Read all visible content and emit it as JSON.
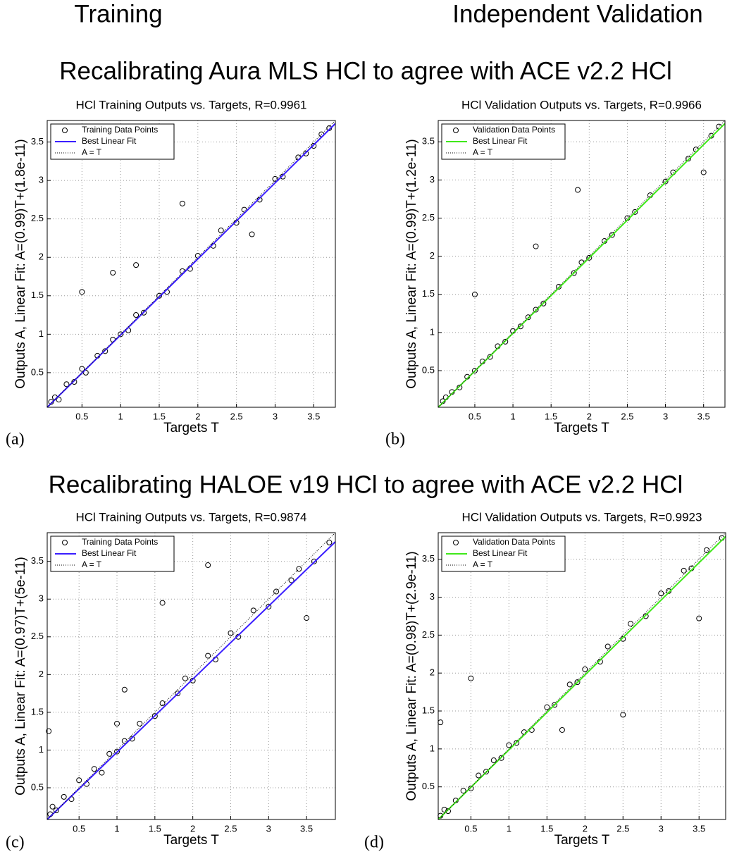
{
  "headers": {
    "left": "Training",
    "right": "Independent Validation"
  },
  "section_titles": [
    "Recalibrating Aura MLS HCl to agree with ACE v2.2 HCl",
    "Recalibrating HALOE v19 HCl to agree with ACE v2.2 HCl"
  ],
  "chart_data": [
    {
      "type": "scatter",
      "panel_label": "(a)",
      "title": "HCl Training Outputs vs. Targets, R=0.9961",
      "xlabel": "Targets T",
      "ylabel": "Outputs A,  Linear Fit: A=(0.99)T+(1.8e-11)",
      "xlim": [
        0.05,
        3.78
      ],
      "ylim": [
        0.05,
        3.78
      ],
      "xticks": [
        0.5,
        1,
        1.5,
        2,
        2.5,
        3,
        3.5
      ],
      "yticks": [
        0.5,
        1,
        1.5,
        2,
        2.5,
        3,
        3.5
      ],
      "grid": true,
      "legend": "upper left",
      "series": [
        {
          "name": "Training Data Points",
          "color": "#000000",
          "mode": "markers",
          "x": [
            0.1,
            0.15,
            0.2,
            0.3,
            0.4,
            0.5,
            0.55,
            0.7,
            0.8,
            0.9,
            1.0,
            1.1,
            1.2,
            1.3,
            1.5,
            1.6,
            1.8,
            1.9,
            2.0,
            2.2,
            2.3,
            2.5,
            2.6,
            2.8,
            3.0,
            3.1,
            3.3,
            3.4,
            3.6,
            3.7,
            0.5,
            1.2,
            1.8,
            2.7,
            0.9,
            3.5
          ],
          "values": [
            0.12,
            0.18,
            0.15,
            0.35,
            0.38,
            0.55,
            0.5,
            0.72,
            0.78,
            0.93,
            1.0,
            1.05,
            1.25,
            1.28,
            1.5,
            1.55,
            1.82,
            1.85,
            2.02,
            2.15,
            2.35,
            2.45,
            2.62,
            2.75,
            3.02,
            3.05,
            3.3,
            3.35,
            3.6,
            3.68,
            1.55,
            1.9,
            2.7,
            2.3,
            1.8,
            3.45
          ]
        },
        {
          "name": "Best Linear Fit",
          "color": "#3a1eff",
          "mode": "line",
          "x": [
            0.05,
            3.78
          ],
          "values": [
            0.05,
            3.74
          ]
        },
        {
          "name": "A = T",
          "color": "#000000",
          "mode": "dotted",
          "x": [
            0.05,
            3.78
          ],
          "values": [
            0.05,
            3.78
          ]
        }
      ]
    },
    {
      "type": "scatter",
      "panel_label": "(b)",
      "title": "HCl Validation Outputs vs. Targets, R=0.9966",
      "xlabel": "Targets T",
      "ylabel": "Outputs A,  Linear Fit: A=(0.99)T+(1.2e-11)",
      "xlim": [
        0.02,
        3.78
      ],
      "ylim": [
        0.02,
        3.78
      ],
      "xticks": [
        0.5,
        1,
        1.5,
        2,
        2.5,
        3,
        3.5
      ],
      "yticks": [
        0.5,
        1,
        1.5,
        2,
        2.5,
        3,
        3.5
      ],
      "grid": true,
      "legend": "upper left",
      "series": [
        {
          "name": "Validation Data Points",
          "color": "#000000",
          "mode": "markers",
          "x": [
            0.08,
            0.12,
            0.2,
            0.3,
            0.4,
            0.5,
            0.6,
            0.7,
            0.8,
            0.9,
            1.0,
            1.1,
            1.2,
            1.3,
            1.4,
            1.6,
            1.8,
            1.9,
            2.0,
            2.2,
            2.3,
            2.5,
            2.6,
            2.8,
            3.0,
            3.1,
            3.3,
            3.4,
            3.6,
            3.7,
            0.5,
            1.3,
            1.85,
            3.5
          ],
          "values": [
            0.1,
            0.15,
            0.22,
            0.28,
            0.42,
            0.5,
            0.62,
            0.68,
            0.82,
            0.88,
            1.02,
            1.08,
            1.2,
            1.3,
            1.38,
            1.6,
            1.78,
            1.92,
            1.98,
            2.2,
            2.28,
            2.5,
            2.58,
            2.8,
            2.98,
            3.1,
            3.28,
            3.4,
            3.58,
            3.7,
            1.5,
            2.13,
            2.87,
            3.1
          ]
        },
        {
          "name": "Best Linear Fit",
          "color": "#40e81a",
          "mode": "line",
          "x": [
            0.02,
            3.78
          ],
          "values": [
            0.02,
            3.74
          ]
        },
        {
          "name": "A = T",
          "color": "#000000",
          "mode": "dotted",
          "x": [
            0.02,
            3.78
          ],
          "values": [
            0.02,
            3.78
          ]
        }
      ]
    },
    {
      "type": "scatter",
      "panel_label": "(c)",
      "title": "HCl Training Outputs vs. Targets, R=0.9874",
      "xlabel": "Targets T",
      "ylabel": "Outputs A,  Linear Fit: A=(0.97)T+(5e-11)",
      "xlim": [
        0.08,
        3.88
      ],
      "ylim": [
        0.08,
        3.88
      ],
      "xticks": [
        0.5,
        1,
        1.5,
        2,
        2.5,
        3,
        3.5
      ],
      "yticks": [
        0.5,
        1,
        1.5,
        2,
        2.5,
        3,
        3.5
      ],
      "grid": true,
      "legend": "upper left",
      "series": [
        {
          "name": "Training Data Points",
          "color": "#000000",
          "mode": "markers",
          "x": [
            0.12,
            0.15,
            0.2,
            0.3,
            0.4,
            0.5,
            0.6,
            0.7,
            0.8,
            0.9,
            1.0,
            1.1,
            1.2,
            1.3,
            1.5,
            1.6,
            1.8,
            1.9,
            2.0,
            2.2,
            2.3,
            2.5,
            2.6,
            2.8,
            3.0,
            3.1,
            3.3,
            3.4,
            3.6,
            3.8,
            0.1,
            1.6,
            1.1,
            2.2,
            3.5,
            1.0
          ],
          "values": [
            0.15,
            0.25,
            0.2,
            0.38,
            0.35,
            0.6,
            0.55,
            0.75,
            0.7,
            0.95,
            0.98,
            1.12,
            1.15,
            1.35,
            1.45,
            1.62,
            1.75,
            1.95,
            1.92,
            2.25,
            2.2,
            2.55,
            2.5,
            2.85,
            2.9,
            3.1,
            3.25,
            3.4,
            3.5,
            3.75,
            1.25,
            2.95,
            1.8,
            3.45,
            2.75,
            1.35
          ]
        },
        {
          "name": "Best Linear Fit",
          "color": "#3a1eff",
          "mode": "line",
          "x": [
            0.08,
            3.88
          ],
          "values": [
            0.08,
            3.76
          ]
        },
        {
          "name": "A = T",
          "color": "#000000",
          "mode": "dotted",
          "x": [
            0.08,
            3.88
          ],
          "values": [
            0.08,
            3.88
          ]
        }
      ]
    },
    {
      "type": "scatter",
      "panel_label": "(d)",
      "title": "HCl Validation Outputs vs. Targets, R=0.9923",
      "xlabel": "Targets T",
      "ylabel": "Outputs A,  Linear Fit: A=(0.98)T+(2.9e-11)",
      "xlim": [
        0.07,
        3.85
      ],
      "ylim": [
        0.07,
        3.85
      ],
      "xticks": [
        0.5,
        1,
        1.5,
        2,
        2.5,
        3,
        3.5
      ],
      "yticks": [
        0.5,
        1,
        1.5,
        2,
        2.5,
        3,
        3.5
      ],
      "grid": true,
      "legend": "upper left",
      "series": [
        {
          "name": "Validation Data Points",
          "color": "#000000",
          "mode": "markers",
          "x": [
            0.1,
            0.15,
            0.2,
            0.3,
            0.4,
            0.5,
            0.6,
            0.7,
            0.8,
            0.9,
            1.0,
            1.1,
            1.2,
            1.3,
            1.5,
            1.6,
            1.8,
            1.9,
            2.0,
            2.2,
            2.3,
            2.5,
            2.6,
            2.8,
            3.0,
            3.1,
            3.3,
            3.4,
            3.6,
            3.8,
            0.5,
            0.1,
            2.5,
            3.5,
            1.7
          ],
          "values": [
            0.12,
            0.2,
            0.18,
            0.32,
            0.45,
            0.48,
            0.65,
            0.7,
            0.85,
            0.88,
            1.05,
            1.08,
            1.22,
            1.25,
            1.55,
            1.58,
            1.85,
            1.88,
            2.05,
            2.15,
            2.35,
            2.45,
            2.65,
            2.75,
            3.05,
            3.08,
            3.35,
            3.38,
            3.62,
            3.78,
            1.93,
            1.35,
            1.45,
            2.72,
            1.25
          ]
        },
        {
          "name": "Best Linear Fit",
          "color": "#40e81a",
          "mode": "line",
          "x": [
            0.07,
            3.85
          ],
          "values": [
            0.07,
            3.8
          ]
        },
        {
          "name": "A = T",
          "color": "#000000",
          "mode": "dotted",
          "x": [
            0.07,
            3.85
          ],
          "values": [
            0.07,
            3.85
          ]
        }
      ]
    }
  ]
}
